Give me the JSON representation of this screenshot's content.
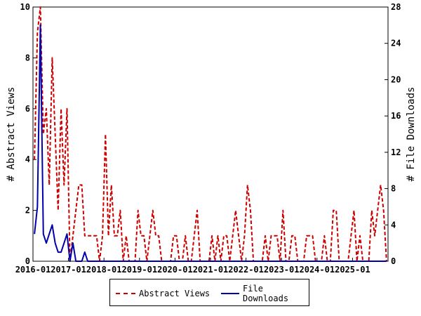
{
  "chart_data": {
    "type": "line",
    "title": "",
    "xlabel": "",
    "ylabel_left": "# Abstract Views",
    "ylabel_right": "# File Downloads",
    "x_start": "2016-01",
    "x_end": "2025-12",
    "xlim": [
      0,
      120
    ],
    "ylim_left": [
      0,
      10
    ],
    "ylim_right": [
      0,
      28
    ],
    "x_ticks": [
      {
        "pos": 0,
        "label": "2016-01"
      },
      {
        "pos": 12,
        "label": "2017-01"
      },
      {
        "pos": 24,
        "label": "2018-01"
      },
      {
        "pos": 36,
        "label": "2019-01"
      },
      {
        "pos": 48,
        "label": "2020-01"
      },
      {
        "pos": 60,
        "label": "2021-01"
      },
      {
        "pos": 72,
        "label": "2022-01"
      },
      {
        "pos": 84,
        "label": "2023-01"
      },
      {
        "pos": 96,
        "label": "2024-01"
      },
      {
        "pos": 108,
        "label": "2025-01"
      }
    ],
    "y_ticks_left": [
      0,
      2,
      4,
      6,
      8,
      10
    ],
    "y_ticks_right": [
      0,
      4,
      8,
      12,
      16,
      20,
      24,
      28
    ],
    "grid": false,
    "legend_position": "bottom",
    "series": [
      {
        "name": "Abstract Views",
        "axis": "left",
        "color": "#cc0000",
        "style": "dashed",
        "values": [
          4,
          9,
          10,
          5,
          6,
          3,
          8,
          5,
          2,
          6,
          3,
          6,
          0,
          1,
          2,
          3,
          3,
          1,
          1,
          1,
          1,
          1,
          0,
          1,
          5,
          1,
          3,
          1,
          1,
          2,
          0,
          1,
          0,
          0,
          0,
          2,
          1,
          1,
          0,
          1,
          2,
          1,
          1,
          0,
          0,
          0,
          0,
          1,
          1,
          0,
          0,
          1,
          0,
          0,
          1,
          2,
          0,
          0,
          0,
          0,
          1,
          0,
          1,
          0,
          1,
          1,
          0,
          1,
          2,
          1,
          0,
          1,
          3,
          2,
          0,
          0,
          0,
          0,
          1,
          0,
          1,
          1,
          1,
          0,
          2,
          0,
          0,
          1,
          1,
          0,
          0,
          0,
          1,
          1,
          1,
          0,
          0,
          0,
          1,
          0,
          0,
          2,
          2,
          0,
          0,
          0,
          0,
          1,
          2,
          0,
          1,
          0,
          0,
          0,
          2,
          1,
          2,
          3,
          2,
          0
        ]
      },
      {
        "name": "File Downloads",
        "axis": "right",
        "color": "#0000aa",
        "style": "solid",
        "values": [
          3,
          6,
          26,
          3,
          2,
          3,
          4,
          2,
          1,
          1,
          2,
          3,
          0,
          2,
          0,
          0,
          0,
          1,
          0,
          0,
          0,
          0,
          0,
          0,
          0,
          0,
          0,
          0,
          0,
          0,
          0,
          0,
          0,
          0,
          0,
          0,
          0,
          0,
          0,
          0,
          0,
          0,
          0,
          0,
          0,
          0,
          0,
          0,
          0,
          0,
          0,
          0,
          0,
          0,
          0,
          0,
          0,
          0,
          0,
          0,
          0,
          0,
          0,
          0,
          0,
          0,
          0,
          0,
          0,
          0,
          0,
          0,
          0,
          0,
          0,
          0,
          0,
          0,
          0,
          0,
          0,
          0,
          0,
          0,
          0,
          0,
          0,
          0,
          0,
          0,
          0,
          0,
          0,
          0,
          0,
          0,
          0,
          0,
          0,
          0,
          0,
          0,
          0,
          0,
          0,
          0,
          0,
          0,
          0,
          0,
          0,
          0,
          0,
          0,
          0,
          0,
          0,
          0,
          0,
          0
        ]
      }
    ]
  }
}
